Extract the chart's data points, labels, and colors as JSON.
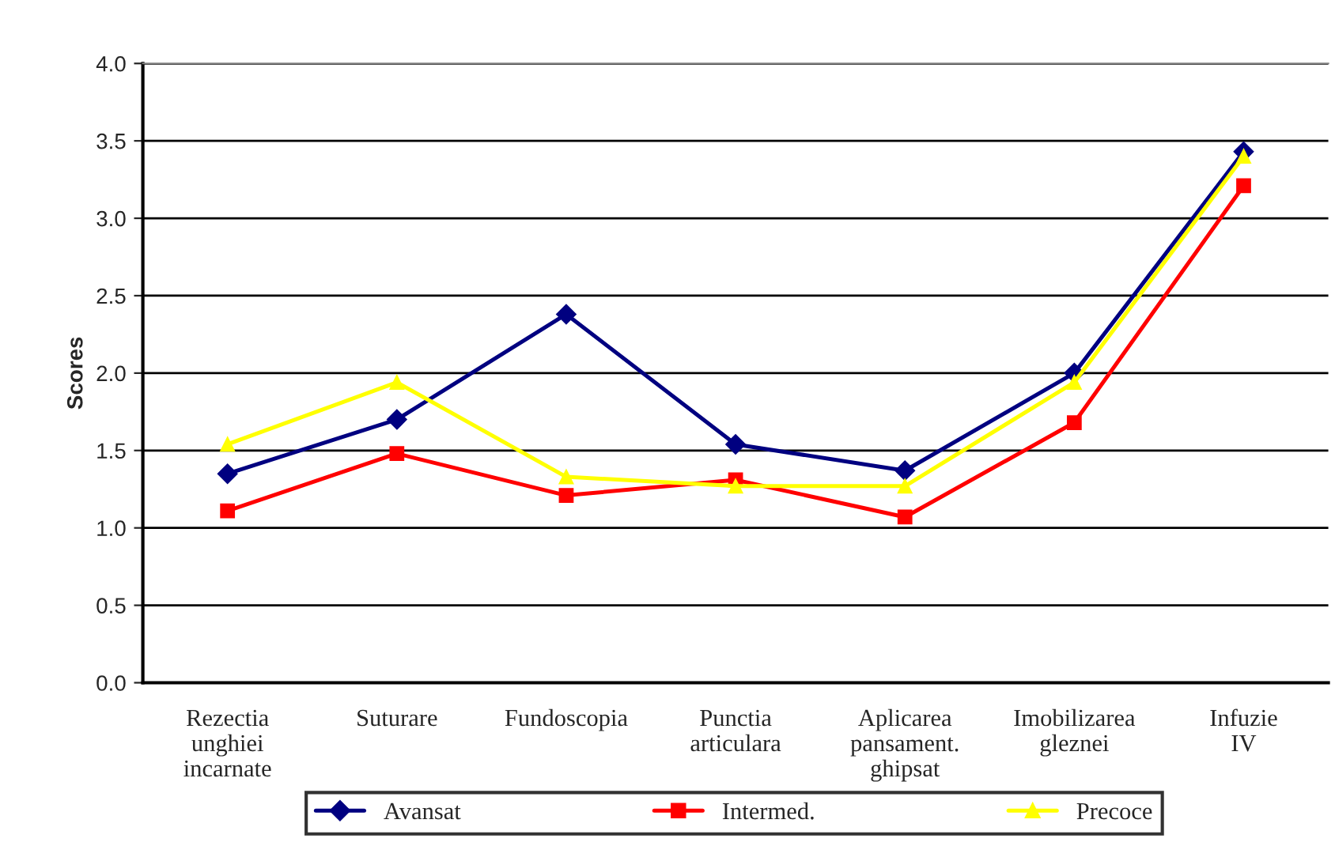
{
  "chart_data": {
    "type": "line",
    "ylabel": "Scores",
    "categories": [
      "Rezectia\nunghiei\nincarnate",
      "Suturare",
      "Fundoscopia",
      "Punctia\narticulara",
      "Aplicarea\npansament.\nghipsat",
      "Imobilizarea\ngleznei",
      "Infuzie\nIV"
    ],
    "series": [
      {
        "name": "Avansat",
        "color": "#000080",
        "marker": "diamond",
        "values": [
          1.35,
          1.7,
          2.38,
          1.54,
          1.37,
          2.0,
          3.43
        ]
      },
      {
        "name": "Intermed.",
        "color": "#ff0000",
        "marker": "square",
        "values": [
          1.11,
          1.48,
          1.21,
          1.31,
          1.07,
          1.68,
          3.21
        ]
      },
      {
        "name": "Precoce",
        "color": "#ffff00",
        "marker": "triangle",
        "values": [
          1.54,
          1.94,
          1.33,
          1.27,
          1.27,
          1.94,
          3.4
        ]
      }
    ],
    "ylim": [
      0,
      4
    ],
    "yticks": [
      {
        "value": 0,
        "label": "0.0"
      },
      0.5,
      {
        "value": 1,
        "label": "1.0"
      },
      1.5,
      {
        "value": 2,
        "label": "2.0"
      },
      2.5,
      {
        "value": 3,
        "label": "3.0"
      },
      3.5,
      {
        "value": 4,
        "label": "4.0"
      }
    ],
    "grid": "y",
    "legend": "bottom"
  }
}
